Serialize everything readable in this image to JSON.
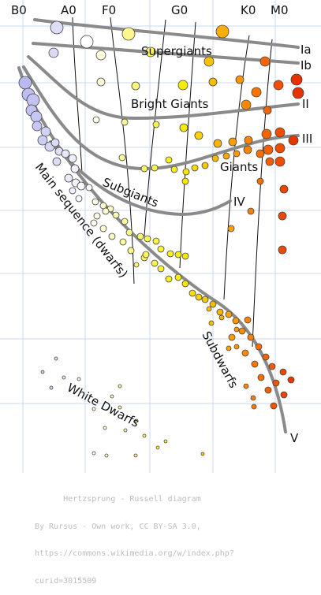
{
  "title": "Hertzsprung-Russell diagram",
  "spectral_classes": [
    "B0",
    "A0",
    "F0",
    "G0",
    "K0",
    "M0"
  ],
  "luminosity_classes": [
    "Ia",
    "Ib",
    "II",
    "III",
    "IV",
    "V"
  ],
  "region_labels": {
    "supergiants": "Supergiants",
    "bright_giants": "Bright Giants",
    "giants": "Giants",
    "subgiants": "Subgiants",
    "main_sequence": "Main sequence (dwarfs)",
    "subdwarfs": "Subdwarfs",
    "white_dwarfs": "White Dwarfs"
  },
  "credit": {
    "line1": "      Hertzsprung - Russell diagram",
    "line2": "By Rursus - Own work, CC BY-SA 3.0,",
    "line3": "https://commons.wikimedia.org/w/index.php?",
    "line4": "curid=3015509"
  },
  "colors": {
    "grid": "#c9d9ef",
    "curve": "#8a8a8a",
    "blue": "#b8b8f0",
    "white": "#ffffff",
    "yellow": "#f5ee00",
    "orange": "#ff8a00",
    "red": "#e83000"
  }
}
